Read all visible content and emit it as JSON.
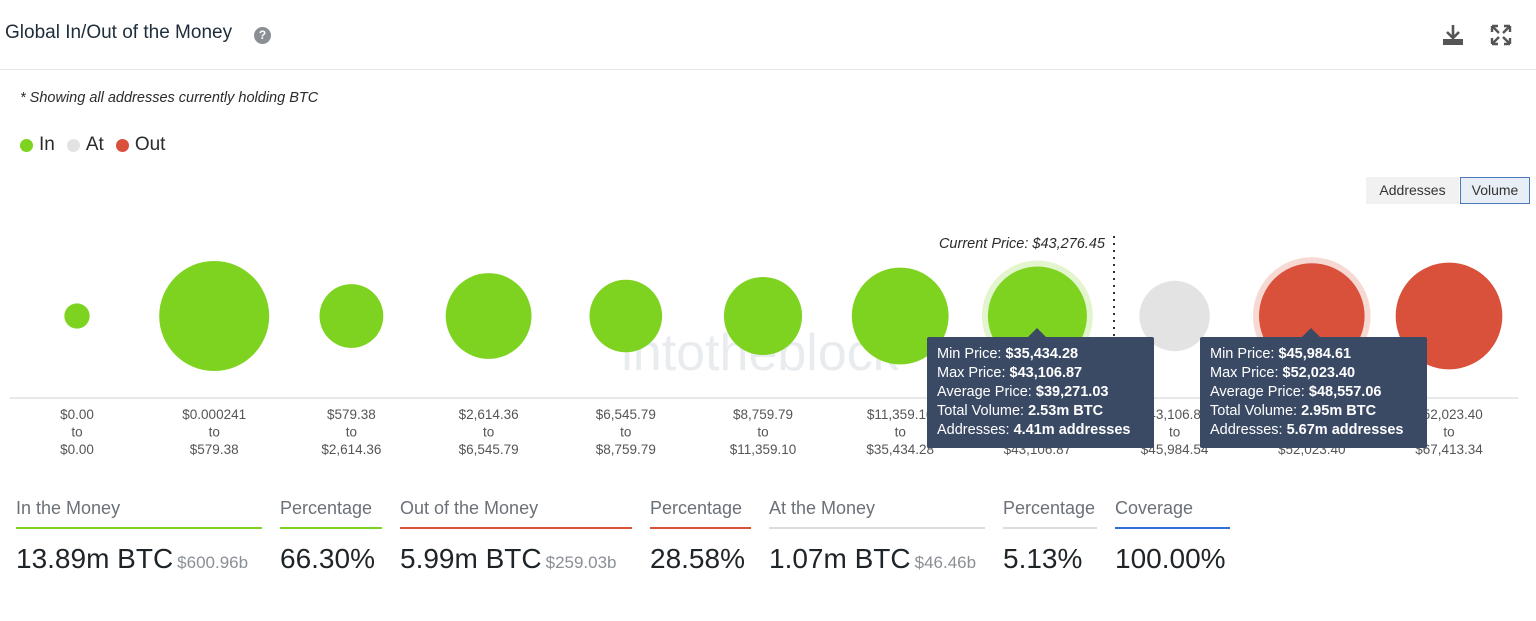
{
  "header": {
    "title": "Global In/Out of the Money",
    "help_glyph": "?",
    "icons": [
      "help-icon",
      "download-icon",
      "expand-icon"
    ]
  },
  "note": "* Showing all addresses currently holding BTC",
  "legend": [
    {
      "label": "In",
      "color": "#7ed321"
    },
    {
      "label": "At",
      "color": "#e3e3e3"
    },
    {
      "label": "Out",
      "color": "#d9503b"
    }
  ],
  "toggle": {
    "addresses": "Addresses",
    "volume": "Volume",
    "active": "Volume"
  },
  "watermark": "intotheblock",
  "chart_data": {
    "type": "bubble",
    "current_price_label": "Current Price: $43,276.45",
    "current_price": 43276.45,
    "size_metric": "Volume",
    "colors": {
      "in": "#7ed321",
      "at": "#e3e3e3",
      "out": "#d9503b"
    },
    "points": [
      {
        "from": "$0.00",
        "to": "$0.00",
        "status": "in",
        "relative_size": 0.23
      },
      {
        "from": "$0.000241",
        "to": "$579.38",
        "status": "in",
        "relative_size": 1.0
      },
      {
        "from": "$579.38",
        "to": "$2,614.36",
        "status": "in",
        "relative_size": 0.58
      },
      {
        "from": "$2,614.36",
        "to": "$6,545.79",
        "status": "in",
        "relative_size": 0.78
      },
      {
        "from": "$6,545.79",
        "to": "$8,759.79",
        "status": "in",
        "relative_size": 0.66
      },
      {
        "from": "$8,759.79",
        "to": "$11,359.10",
        "status": "in",
        "relative_size": 0.71
      },
      {
        "from": "$11,359.10",
        "to": "$35,434.28",
        "status": "in",
        "relative_size": 0.88
      },
      {
        "from": "$35,434.28",
        "to": "$43,106.87",
        "status": "in",
        "relative_size": 0.9,
        "highlighted": true
      },
      {
        "from": "$43,106.87",
        "to": "$45,984.54",
        "status": "at",
        "relative_size": 0.64
      },
      {
        "from": "$45,984.61",
        "to": "$52,023.40",
        "status": "out",
        "relative_size": 0.96,
        "highlighted": true
      },
      {
        "from": "$52,023.40",
        "to": "$67,413.34",
        "status": "out",
        "relative_size": 0.97
      }
    ],
    "to_word": "to"
  },
  "tooltips": [
    {
      "min_label": "Min Price:",
      "min": "$35,434.28",
      "max_label": "Max Price:",
      "max": "$43,106.87",
      "avg_label": "Average Price:",
      "avg": "$39,271.03",
      "vol_label": "Total Volume:",
      "vol": "2.53m BTC",
      "addr_label": "Addresses:",
      "addr": "4.41m addresses"
    },
    {
      "min_label": "Min Price:",
      "min": "$45,984.61",
      "max_label": "Max Price:",
      "max": "$52,023.40",
      "avg_label": "Average Price:",
      "avg": "$48,557.06",
      "vol_label": "Total Volume:",
      "vol": "2.95m BTC",
      "addr_label": "Addresses:",
      "addr": "5.67m addresses"
    }
  ],
  "stats": {
    "in_money": {
      "label": "In the Money",
      "value": "13.89m BTC",
      "sub": "$600.96b",
      "color": "#7ed321"
    },
    "in_pct": {
      "label": "Percentage",
      "value": "66.30%",
      "color": "#7ed321"
    },
    "out_money": {
      "label": "Out of the Money",
      "value": "5.99m BTC",
      "sub": "$259.03b",
      "color": "#d9503b"
    },
    "out_pct": {
      "label": "Percentage",
      "value": "28.58%",
      "color": "#d9503b"
    },
    "at_money": {
      "label": "At the Money",
      "value": "1.07m BTC",
      "sub": "$46.46b",
      "color": "#dcdcdc"
    },
    "at_pct": {
      "label": "Percentage",
      "value": "5.13%",
      "color": "#dcdcdc"
    },
    "coverage": {
      "label": "Coverage",
      "value": "100.00%",
      "color": "#2f6fd6"
    }
  }
}
